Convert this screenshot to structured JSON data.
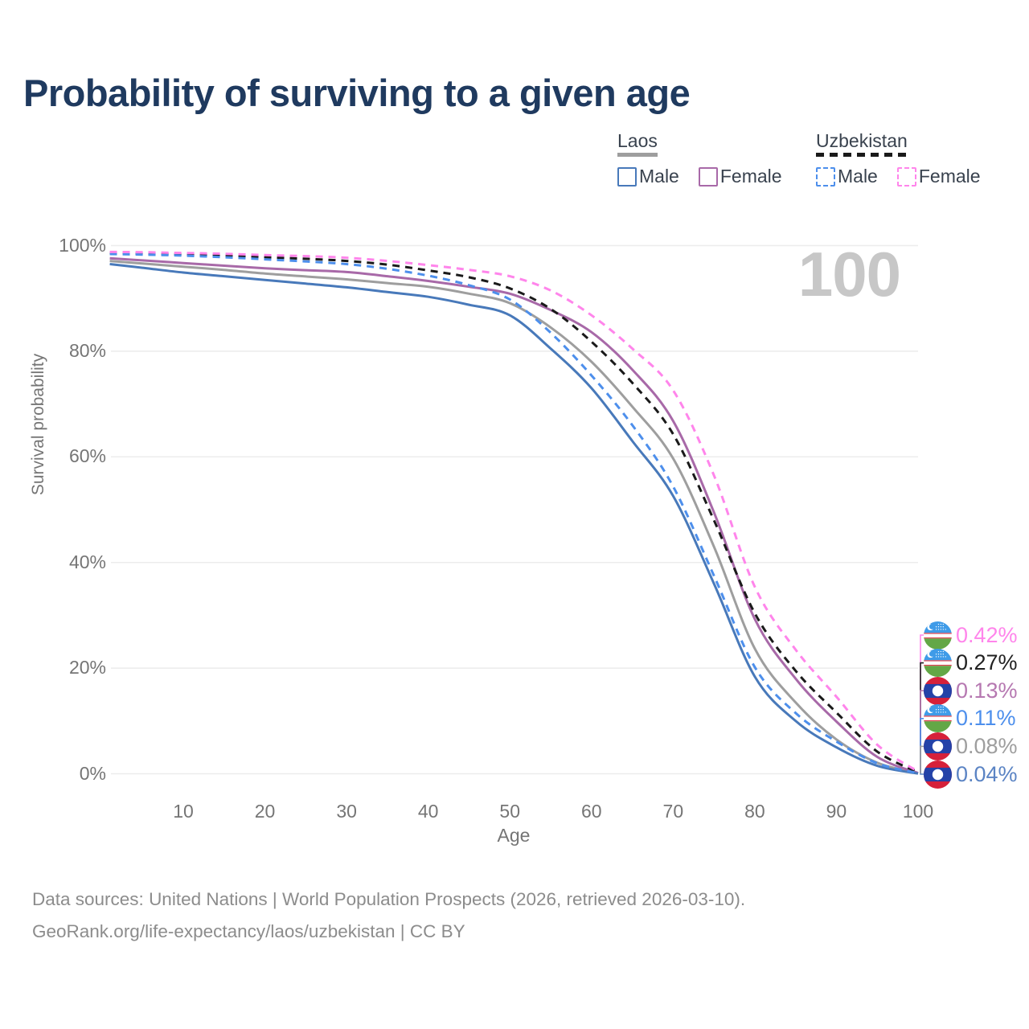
{
  "title": "Probability of surviving to a given age",
  "hover_age_label": "100",
  "legend": {
    "groups": [
      {
        "label": "Laos",
        "line_style": "solid",
        "underline_color": "#9E9E9E",
        "items": [
          {
            "label": "Male",
            "color": "#4879BA"
          },
          {
            "label": "Female",
            "color": "#A869A8"
          }
        ]
      },
      {
        "label": "Uzbekistan",
        "line_style": "dashed",
        "underline_color": "#1A1A1A",
        "items": [
          {
            "label": "Male",
            "color": "#4D8FEC"
          },
          {
            "label": "Female",
            "color": "#FF85EB"
          }
        ]
      }
    ]
  },
  "chart_data": {
    "type": "line",
    "title": "Probability of surviving to a given age",
    "xlabel": "Age",
    "ylabel": "Survival probability",
    "xlim": [
      1,
      100
    ],
    "ylim": [
      0,
      100
    ],
    "grid": "horizontal",
    "x_ticks": [
      10,
      20,
      30,
      40,
      50,
      60,
      70,
      80,
      90,
      100
    ],
    "y_ticks": [
      {
        "v": 0,
        "label": "0%"
      },
      {
        "v": 20,
        "label": "20%"
      },
      {
        "v": 40,
        "label": "40%"
      },
      {
        "v": 60,
        "label": "60%"
      },
      {
        "v": 80,
        "label": "80%"
      },
      {
        "v": 100,
        "label": "100%"
      }
    ],
    "ages": [
      1,
      5,
      10,
      15,
      20,
      25,
      30,
      35,
      40,
      45,
      50,
      55,
      60,
      65,
      70,
      75,
      80,
      85,
      90,
      95,
      100
    ],
    "series": [
      {
        "name": "Laos Male",
        "color": "#4879BA",
        "dash": "solid",
        "values": [
          96.5,
          95.8,
          94.9,
          94.2,
          93.5,
          92.8,
          92.1,
          91.2,
          90.3,
          88.8,
          86.8,
          80.5,
          73.0,
          63.0,
          52.6,
          36.0,
          18.4,
          10.0,
          5.0,
          1.5,
          0.04
        ]
      },
      {
        "name": "Laos Female",
        "color": "#A869A8",
        "dash": "solid",
        "values": [
          97.6,
          97.2,
          96.7,
          96.2,
          95.7,
          95.35,
          95.0,
          94.2,
          93.3,
          92.2,
          90.9,
          87.8,
          83.6,
          76.5,
          66.8,
          49.5,
          29.3,
          18.0,
          9.9,
          3.2,
          0.13
        ]
      },
      {
        "name": "Laos Total",
        "color": "#9E9E9E",
        "dash": "solid",
        "values": [
          97.1,
          96.6,
          96.0,
          95.4,
          94.7,
          94.15,
          93.6,
          92.9,
          92.2,
          90.9,
          89.1,
          84.5,
          78.0,
          69.5,
          59.7,
          43.0,
          23.7,
          13.5,
          6.5,
          2.1,
          0.08
        ]
      },
      {
        "name": "Uzbekistan Male",
        "color": "#4D8FEC",
        "dash": "dashed",
        "values": [
          98.4,
          98.3,
          98.1,
          97.8,
          97.4,
          97.0,
          96.5,
          95.6,
          94.3,
          92.5,
          89.8,
          83.5,
          75.4,
          66.0,
          54.4,
          37.5,
          20.2,
          11.5,
          6.1,
          2.0,
          0.11
        ]
      },
      {
        "name": "Uzbekistan Total",
        "color": "#1A1A1A",
        "dash": "dashed",
        "values": [
          98.6,
          98.5,
          98.3,
          98.1,
          97.8,
          97.5,
          97.1,
          96.4,
          95.3,
          94.0,
          91.9,
          88.0,
          81.8,
          74.0,
          64.3,
          48.0,
          30.4,
          19.5,
          11.6,
          4.2,
          0.27
        ]
      },
      {
        "name": "Uzbekistan Female",
        "color": "#FF85EB",
        "dash": "dashed",
        "values": [
          98.8,
          98.75,
          98.6,
          98.45,
          98.2,
          98.0,
          97.7,
          97.1,
          96.3,
          95.4,
          94.2,
          91.5,
          86.8,
          80.5,
          72.6,
          56.5,
          35.4,
          23.5,
          14.6,
          5.5,
          0.42
        ]
      }
    ]
  },
  "end_labels": [
    {
      "value": "0.42%",
      "color": "#FF85EB",
      "flag": "uzbekistan",
      "series": "Uzbekistan Female"
    },
    {
      "value": "0.27%",
      "color": "#212121",
      "flag": "uzbekistan",
      "series": "Uzbekistan Total"
    },
    {
      "value": "0.13%",
      "color": "#B678B1",
      "flag": "laos",
      "series": "Laos Female"
    },
    {
      "value": "0.11%",
      "color": "#4D8FEC",
      "flag": "uzbekistan",
      "series": "Uzbekistan Male"
    },
    {
      "value": "0.08%",
      "color": "#9E9E9E",
      "flag": "laos",
      "series": "Laos Total"
    },
    {
      "value": "0.04%",
      "color": "#5B84C4",
      "flag": "laos",
      "series": "Laos Male"
    }
  ],
  "footer": {
    "line1": "Data sources: United Nations | World Population Prospects (2026, retrieved 2026-03-10).",
    "line2": "GeoRank.org/life-expectancy/laos/uzbekistan | CC BY"
  }
}
